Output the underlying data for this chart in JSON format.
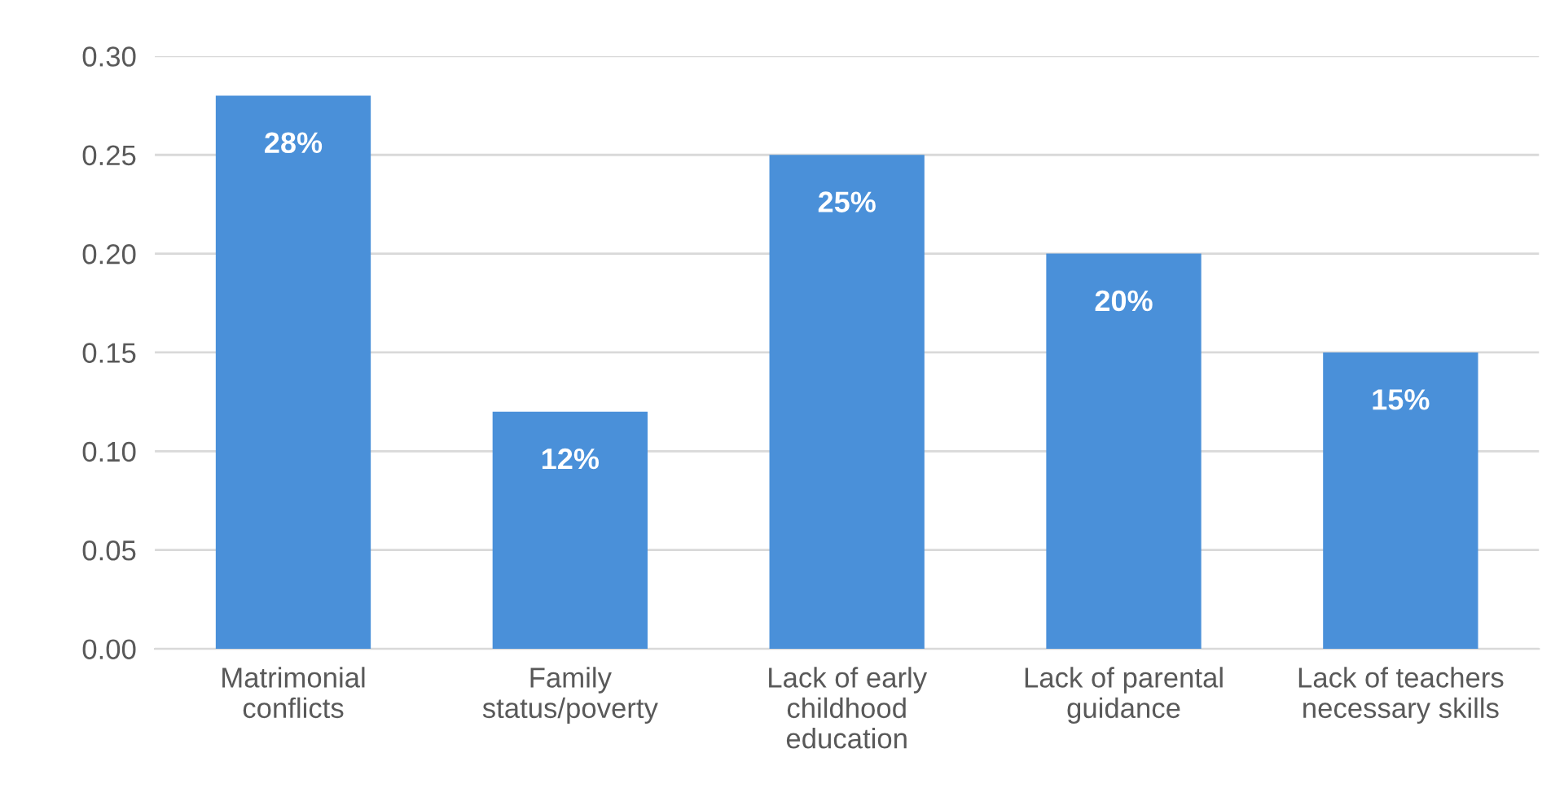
{
  "chart_data": {
    "type": "bar",
    "categories": [
      "Matrimonial\nconflicts",
      "Family\nstatus/poverty",
      "Lack of early\nchildhood\neducation",
      "Lack of parental\nguidance",
      "Lack of teachers\nnecessary skills"
    ],
    "values": [
      0.28,
      0.12,
      0.25,
      0.2,
      0.15
    ],
    "value_labels": [
      "28%",
      "12%",
      "25%",
      "20%",
      "15%"
    ],
    "color": "#4a90d9",
    "ylim": [
      0,
      0.3
    ],
    "yticks": [
      {
        "value": 0,
        "label": "0.00"
      },
      {
        "value": 0.05,
        "label": "0.05"
      },
      {
        "value": 0.1,
        "label": "0.10"
      },
      {
        "value": 0.15,
        "label": "0.15"
      },
      {
        "value": 0.2,
        "label": "0.20"
      },
      {
        "value": 0.25,
        "label": "0.25"
      },
      {
        "value": 0.3,
        "label": "0.30"
      }
    ],
    "grid": "y"
  }
}
